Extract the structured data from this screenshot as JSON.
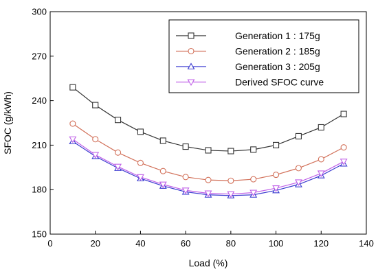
{
  "chart_data": {
    "type": "line",
    "title": "",
    "xlabel": "Load (%)",
    "ylabel": "SFOC (g/kWh)",
    "xlim": [
      0,
      140
    ],
    "ylim": [
      150,
      300
    ],
    "xticks": [
      0,
      20,
      40,
      60,
      80,
      100,
      120,
      140
    ],
    "yticks": [
      150,
      180,
      210,
      240,
      270,
      300
    ],
    "grid": false,
    "legend_position": "top-right",
    "x": [
      10,
      20,
      30,
      40,
      50,
      60,
      70,
      80,
      90,
      100,
      110,
      120,
      130
    ],
    "series": [
      {
        "name": "Generation 1 : 175g",
        "color": "#333333",
        "marker": "square",
        "values": [
          249,
          237,
          227,
          219,
          213,
          209,
          206.5,
          206,
          207,
          210,
          216,
          222,
          231
        ]
      },
      {
        "name": "Generation 2 : 185g",
        "color": "#d2715a",
        "marker": "circle",
        "values": [
          224.5,
          214,
          205,
          198,
          192.5,
          188.5,
          186.5,
          186,
          187,
          190,
          194.5,
          200.5,
          208.5
        ]
      },
      {
        "name": "Generation 3 : 205g",
        "color": "#3a3ad0",
        "marker": "triangle-up",
        "values": [
          212.5,
          202.5,
          194.5,
          187.5,
          182.5,
          178.5,
          176.5,
          176,
          176.5,
          179.5,
          183.5,
          189.5,
          197.5
        ]
      },
      {
        "name": "Derived SFOC curve",
        "color": "#c060e8",
        "marker": "triangle-down",
        "values": [
          214,
          203.5,
          195.5,
          188.5,
          183.5,
          179.5,
          177.5,
          177,
          178,
          181,
          185,
          191,
          199
        ]
      }
    ]
  }
}
